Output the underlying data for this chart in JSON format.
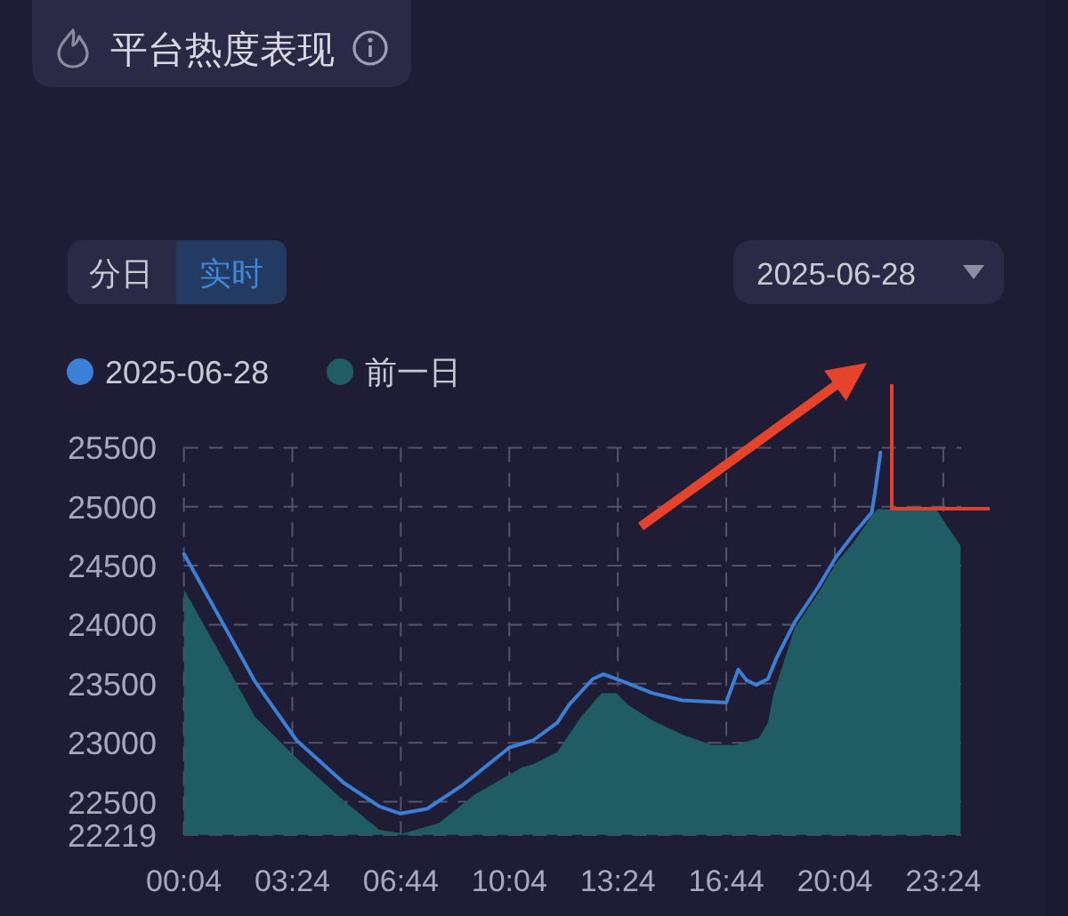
{
  "chart_data": {
    "type": "area",
    "title": "平台热度表现",
    "annotations": [
      "分日",
      "实时",
      "2025-06-28"
    ],
    "series": [
      {
        "name": "2025-06-28",
        "type": "line",
        "color": "#3b7fd6",
        "x": [
          0.07,
          1.35,
          2.25,
          3.53,
          4.98,
          6.08,
          6.72,
          7.54,
          8.63,
          10.07,
          10.8,
          11.54,
          11.9,
          12.63,
          12.96,
          13.55,
          14.46,
          15.37,
          16.73,
          16.9,
          17.1,
          17.35,
          17.65,
          18.01,
          18.28,
          18.83,
          19.56,
          20.1,
          20.65,
          21.2,
          21.3,
          21.47
        ],
        "values": [
          24600,
          23970,
          23520,
          23020,
          22660,
          22460,
          22400,
          22440,
          22640,
          22960,
          23020,
          23170,
          23320,
          23540,
          23580,
          23520,
          23420,
          23360,
          23340,
          23470,
          23620,
          23530,
          23490,
          23540,
          23720,
          24020,
          24320,
          24570,
          24770,
          24950,
          25120,
          25460
        ]
      },
      {
        "name": "前一日",
        "color": "#1f5c64",
        "x": [
          0.07,
          1.35,
          2.25,
          3.53,
          4.98,
          6.08,
          6.8,
          7.9,
          9.0,
          10.45,
          10.82,
          11.54,
          12.27,
          12.9,
          13.36,
          13.72,
          14.46,
          15.37,
          16.28,
          17.0,
          17.74,
          18.01,
          18.19,
          18.83,
          19.56,
          20.1,
          20.65,
          21.2,
          21.38,
          23.2,
          23.56,
          23.93
        ],
        "values": [
          24300,
          23670,
          23220,
          22870,
          22510,
          22260,
          22230,
          22320,
          22560,
          22790,
          22820,
          22920,
          23220,
          23420,
          23420,
          23320,
          23190,
          23070,
          22980,
          22980,
          23040,
          23170,
          23420,
          23970,
          24270,
          24520,
          24700,
          24920,
          24980,
          24970,
          24820,
          24670
        ]
      }
    ],
    "xlim": [
      0.067,
      23.95
    ],
    "xticks": [
      {
        "value": 0.067,
        "label": "00:04"
      },
      {
        "value": 3.4,
        "label": "03:24"
      },
      {
        "value": 6.733,
        "label": "06:44"
      },
      {
        "value": 10.067,
        "label": "10:04"
      },
      {
        "value": 13.4,
        "label": "13:24"
      },
      {
        "value": 16.733,
        "label": "16:44"
      },
      {
        "value": 20.067,
        "label": "20:04"
      },
      {
        "value": 23.4,
        "label": "23:24"
      }
    ],
    "ylim": [
      22219,
      25500
    ],
    "yticks": [
      22219,
      22500,
      23000,
      23500,
      24000,
      24500,
      25000,
      25500
    ],
    "grid": true,
    "legend": "top left",
    "line_style": "solid"
  }
}
